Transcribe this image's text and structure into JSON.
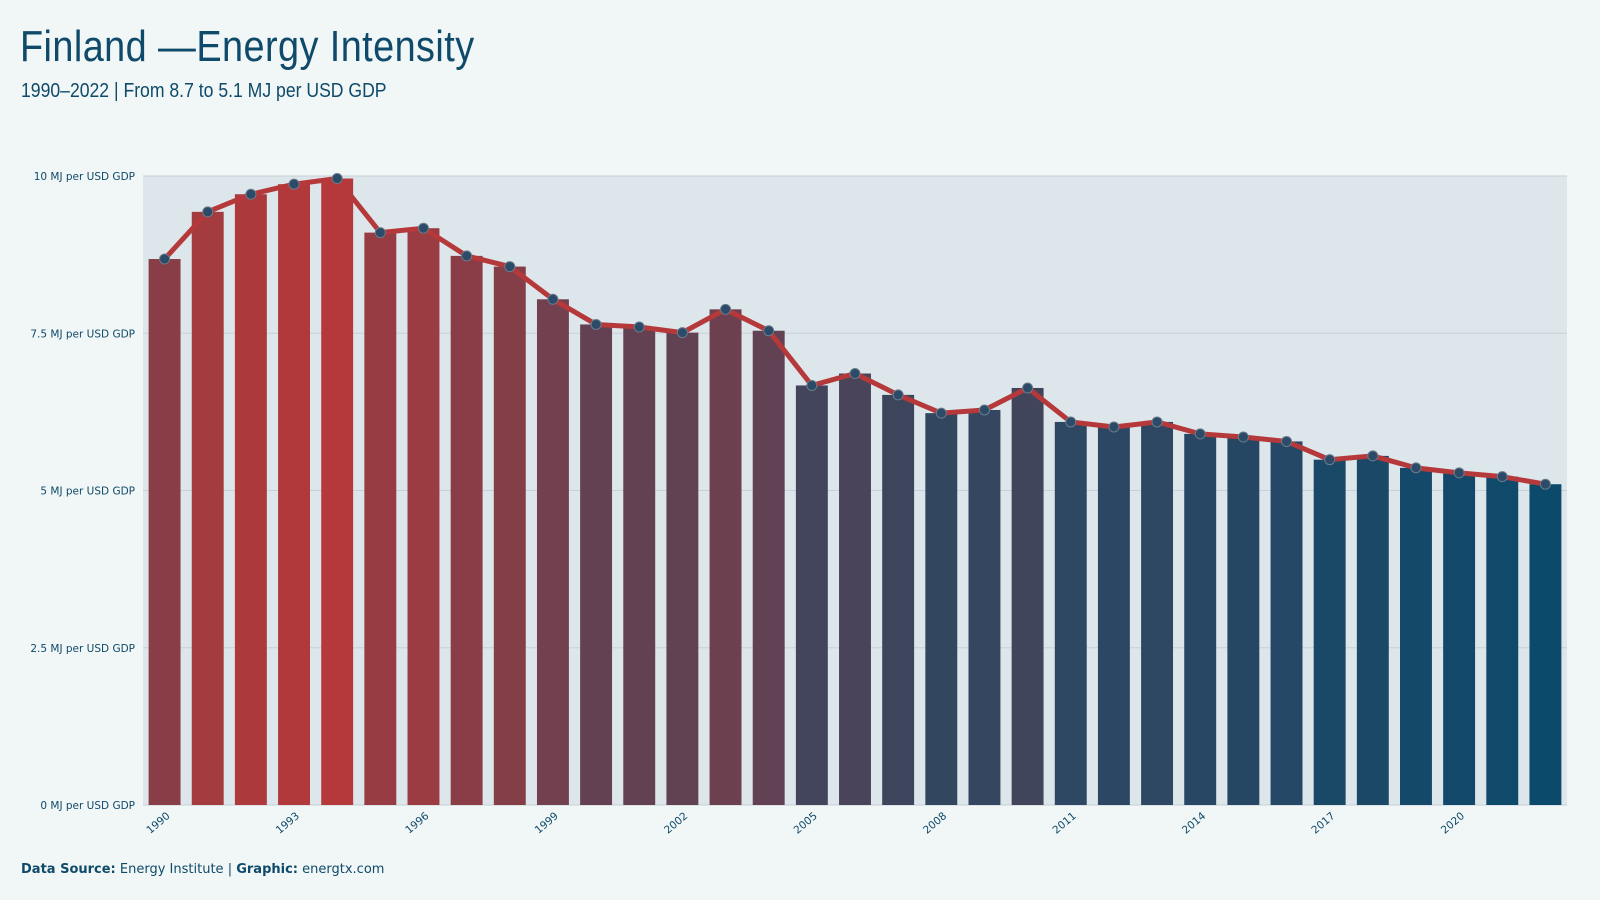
{
  "header": {
    "title": "Finland —Energy Intensity",
    "subtitle": "1990–2022 | From 8.7 to 5.1 MJ per USD GDP"
  },
  "footer": {
    "source_label": "Data Source:",
    "source_value": "Energy Institute",
    "separator": "|",
    "graphic_label": "Graphic:",
    "graphic_value": "energtx.com"
  },
  "colors": {
    "high": "#b5393a",
    "low": "#0c4a6c",
    "line": "#b5393a",
    "marker": "#2c4b68",
    "plot_bg": "#dde6ea",
    "grid": "#c6d0d6",
    "text": "#0f4a6a"
  },
  "chart_data": {
    "type": "bar",
    "title": "Finland —Energy Intensity",
    "subtitle": "1990–2022 | From 8.7 to 5.1 MJ per USD GDP",
    "unit": "MJ per USD GDP",
    "x": [
      1990,
      1991,
      1992,
      1993,
      1994,
      1995,
      1996,
      1997,
      1998,
      1999,
      2000,
      2001,
      2002,
      2003,
      2004,
      2005,
      2006,
      2007,
      2008,
      2009,
      2010,
      2011,
      2012,
      2013,
      2014,
      2015,
      2016,
      2017,
      2018,
      2019,
      2020,
      2021,
      2022
    ],
    "values": [
      8.68,
      9.43,
      9.71,
      9.87,
      9.96,
      9.1,
      9.17,
      8.73,
      8.56,
      8.04,
      7.64,
      7.6,
      7.51,
      7.88,
      7.54,
      6.67,
      6.86,
      6.52,
      6.23,
      6.28,
      6.63,
      6.09,
      6.01,
      6.09,
      5.9,
      5.85,
      5.78,
      5.49,
      5.55,
      5.36,
      5.28,
      5.22,
      5.1
    ],
    "series": [
      {
        "type": "bar",
        "values": [
          8.68,
          9.43,
          9.71,
          9.87,
          9.96,
          9.1,
          9.17,
          8.73,
          8.56,
          8.04,
          7.64,
          7.6,
          7.51,
          7.88,
          7.54,
          6.67,
          6.86,
          6.52,
          6.23,
          6.28,
          6.63,
          6.09,
          6.01,
          6.09,
          5.9,
          5.85,
          5.78,
          5.49,
          5.55,
          5.36,
          5.28,
          5.22,
          5.1
        ]
      },
      {
        "type": "line",
        "values": [
          8.68,
          9.43,
          9.71,
          9.87,
          9.96,
          9.1,
          9.17,
          8.73,
          8.56,
          8.04,
          7.64,
          7.6,
          7.51,
          7.88,
          7.54,
          6.67,
          6.86,
          6.52,
          6.23,
          6.28,
          6.63,
          6.09,
          6.01,
          6.09,
          5.9,
          5.85,
          5.78,
          5.49,
          5.55,
          5.36,
          5.28,
          5.22,
          5.1
        ]
      }
    ],
    "ylim": [
      0,
      10
    ],
    "yticks": [
      0,
      2.5,
      5,
      7.5,
      10
    ],
    "ytick_labels": [
      "0 MJ per USD GDP",
      "2.5 MJ per USD GDP",
      "5 MJ per USD GDP",
      "7.5 MJ per USD GDP",
      "10 MJ per USD GDP"
    ],
    "xticks": [
      1990,
      1993,
      1996,
      1999,
      2002,
      2005,
      2008,
      2011,
      2014,
      2017,
      2020
    ],
    "xtick_labels": [
      "1990",
      "1993",
      "1996",
      "1999",
      "2002",
      "2005",
      "2008",
      "2011",
      "2014",
      "2017",
      "2020"
    ],
    "grid": true,
    "legend": "none"
  }
}
